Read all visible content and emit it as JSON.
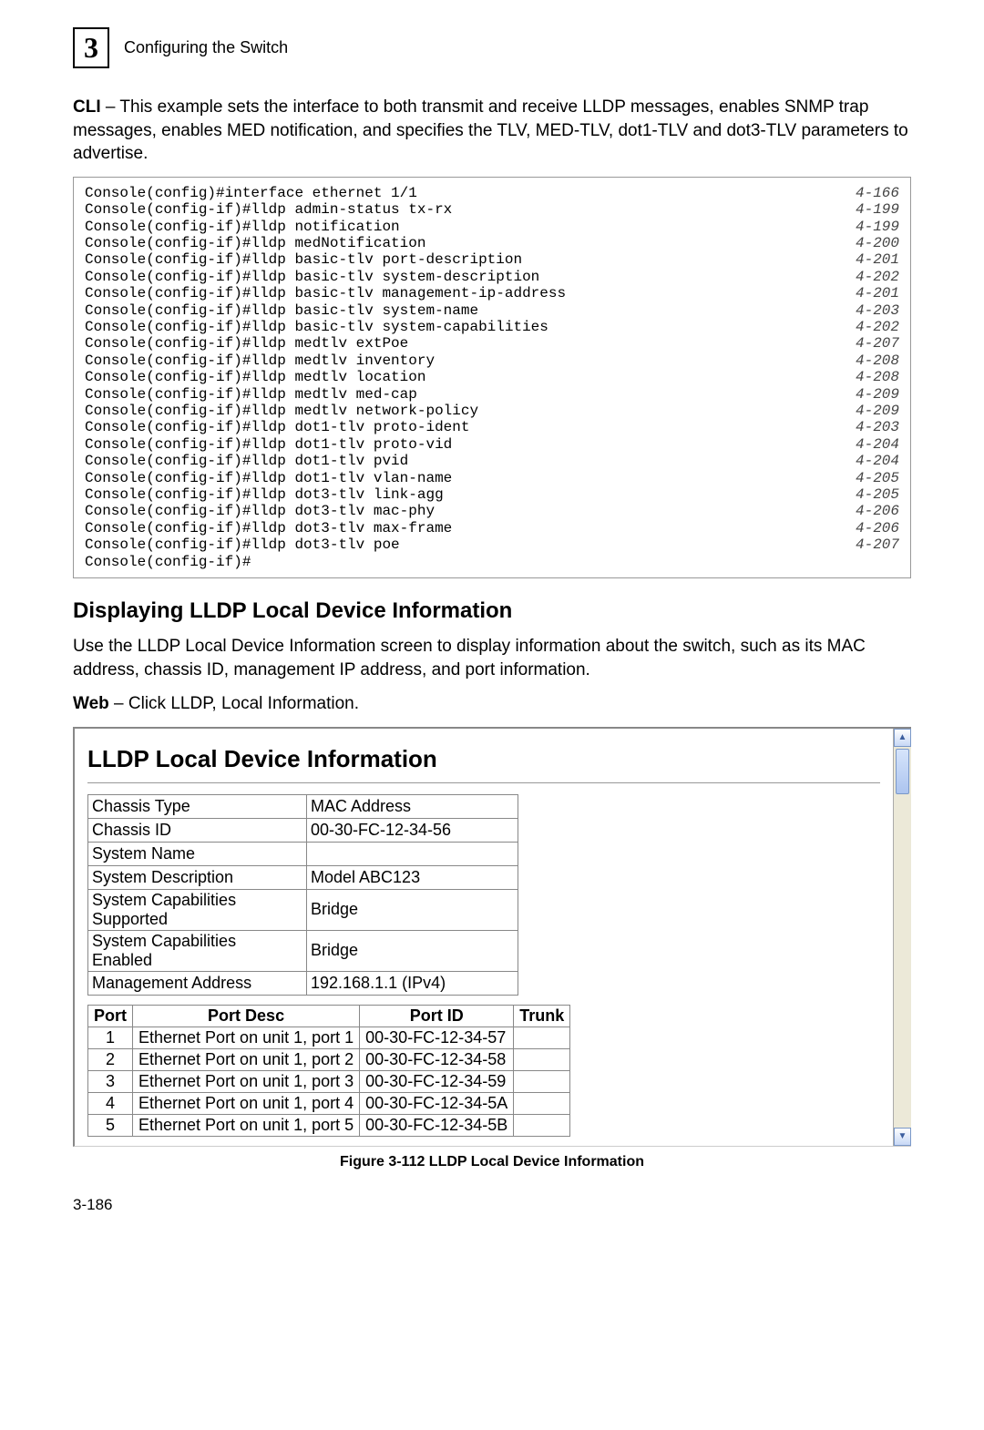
{
  "header": {
    "chapter_number": "3",
    "chapter_title": "Configuring the Switch"
  },
  "intro": {
    "para1_bold": "CLI",
    "para1": " – This example sets the interface to both transmit and receive LLDP messages, enables SNMP trap messages, enables MED notification, and specifies the TLV, MED-TLV, dot1-TLV and dot3-TLV parameters to advertise."
  },
  "cli": [
    {
      "cmd": "Console(config)#interface ethernet 1/1",
      "ref": "4-166"
    },
    {
      "cmd": "Console(config-if)#lldp admin-status tx-rx",
      "ref": "4-199"
    },
    {
      "cmd": "Console(config-if)#lldp notification",
      "ref": "4-199"
    },
    {
      "cmd": "Console(config-if)#lldp medNotification",
      "ref": "4-200"
    },
    {
      "cmd": "Console(config-if)#lldp basic-tlv port-description",
      "ref": "4-201"
    },
    {
      "cmd": "Console(config-if)#lldp basic-tlv system-description",
      "ref": "4-202"
    },
    {
      "cmd": "Console(config-if)#lldp basic-tlv management-ip-address",
      "ref": "4-201"
    },
    {
      "cmd": "Console(config-if)#lldp basic-tlv system-name",
      "ref": "4-203"
    },
    {
      "cmd": "Console(config-if)#lldp basic-tlv system-capabilities",
      "ref": "4-202"
    },
    {
      "cmd": "Console(config-if)#lldp medtlv extPoe",
      "ref": "4-207"
    },
    {
      "cmd": "Console(config-if)#lldp medtlv inventory",
      "ref": "4-208"
    },
    {
      "cmd": "Console(config-if)#lldp medtlv location",
      "ref": "4-208"
    },
    {
      "cmd": "Console(config-if)#lldp medtlv med-cap",
      "ref": "4-209"
    },
    {
      "cmd": "Console(config-if)#lldp medtlv network-policy",
      "ref": "4-209"
    },
    {
      "cmd": "Console(config-if)#lldp dot1-tlv proto-ident",
      "ref": "4-203"
    },
    {
      "cmd": "Console(config-if)#lldp dot1-tlv proto-vid",
      "ref": "4-204"
    },
    {
      "cmd": "Console(config-if)#lldp dot1-tlv pvid",
      "ref": "4-204"
    },
    {
      "cmd": "Console(config-if)#lldp dot1-tlv vlan-name",
      "ref": "4-205"
    },
    {
      "cmd": "Console(config-if)#lldp dot3-tlv link-agg",
      "ref": "4-205"
    },
    {
      "cmd": "Console(config-if)#lldp dot3-tlv mac-phy",
      "ref": "4-206"
    },
    {
      "cmd": "Console(config-if)#lldp dot3-tlv max-frame",
      "ref": "4-206"
    },
    {
      "cmd": "Console(config-if)#lldp dot3-tlv poe",
      "ref": "4-207"
    },
    {
      "cmd": "Console(config-if)#",
      "ref": ""
    }
  ],
  "section": {
    "heading": "Displaying LLDP Local Device Information",
    "para": "Use the LLDP Local Device Information screen to display information about the switch, such as its MAC address, chassis ID, management IP address, and port information.",
    "web_bold": "Web",
    "web_text": " – Click LLDP, Local Information."
  },
  "panel": {
    "title": "LLDP Local Device Information",
    "info_rows": [
      {
        "k": "Chassis Type",
        "v": "MAC Address"
      },
      {
        "k": "Chassis ID",
        "v": "00-30-FC-12-34-56"
      },
      {
        "k": "System Name",
        "v": ""
      },
      {
        "k": "System Description",
        "v": "Model ABC123"
      },
      {
        "k": "System Capabilities Supported",
        "v": "Bridge"
      },
      {
        "k": "System Capabilities Enabled",
        "v": "Bridge"
      },
      {
        "k": "Management Address",
        "v": "192.168.1.1 (IPv4)"
      }
    ],
    "port_headers": {
      "port": "Port",
      "desc": "Port Desc",
      "id": "Port ID",
      "trunk": "Trunk"
    },
    "port_rows": [
      {
        "n": "1",
        "desc": "Ethernet Port on unit 1, port 1",
        "id": "00-30-FC-12-34-57",
        "trunk": ""
      },
      {
        "n": "2",
        "desc": "Ethernet Port on unit 1, port 2",
        "id": "00-30-FC-12-34-58",
        "trunk": ""
      },
      {
        "n": "3",
        "desc": "Ethernet Port on unit 1, port 3",
        "id": "00-30-FC-12-34-59",
        "trunk": ""
      },
      {
        "n": "4",
        "desc": "Ethernet Port on unit 1, port 4",
        "id": "00-30-FC-12-34-5A",
        "trunk": ""
      },
      {
        "n": "5",
        "desc": "Ethernet Port on unit 1, port 5",
        "id": "00-30-FC-12-34-5B",
        "trunk": ""
      }
    ]
  },
  "figure_caption": "Figure 3-112  LLDP Local Device Information",
  "page_number": "3-186",
  "styles": {
    "border_color": "#888888",
    "mono_color": "#555555"
  }
}
